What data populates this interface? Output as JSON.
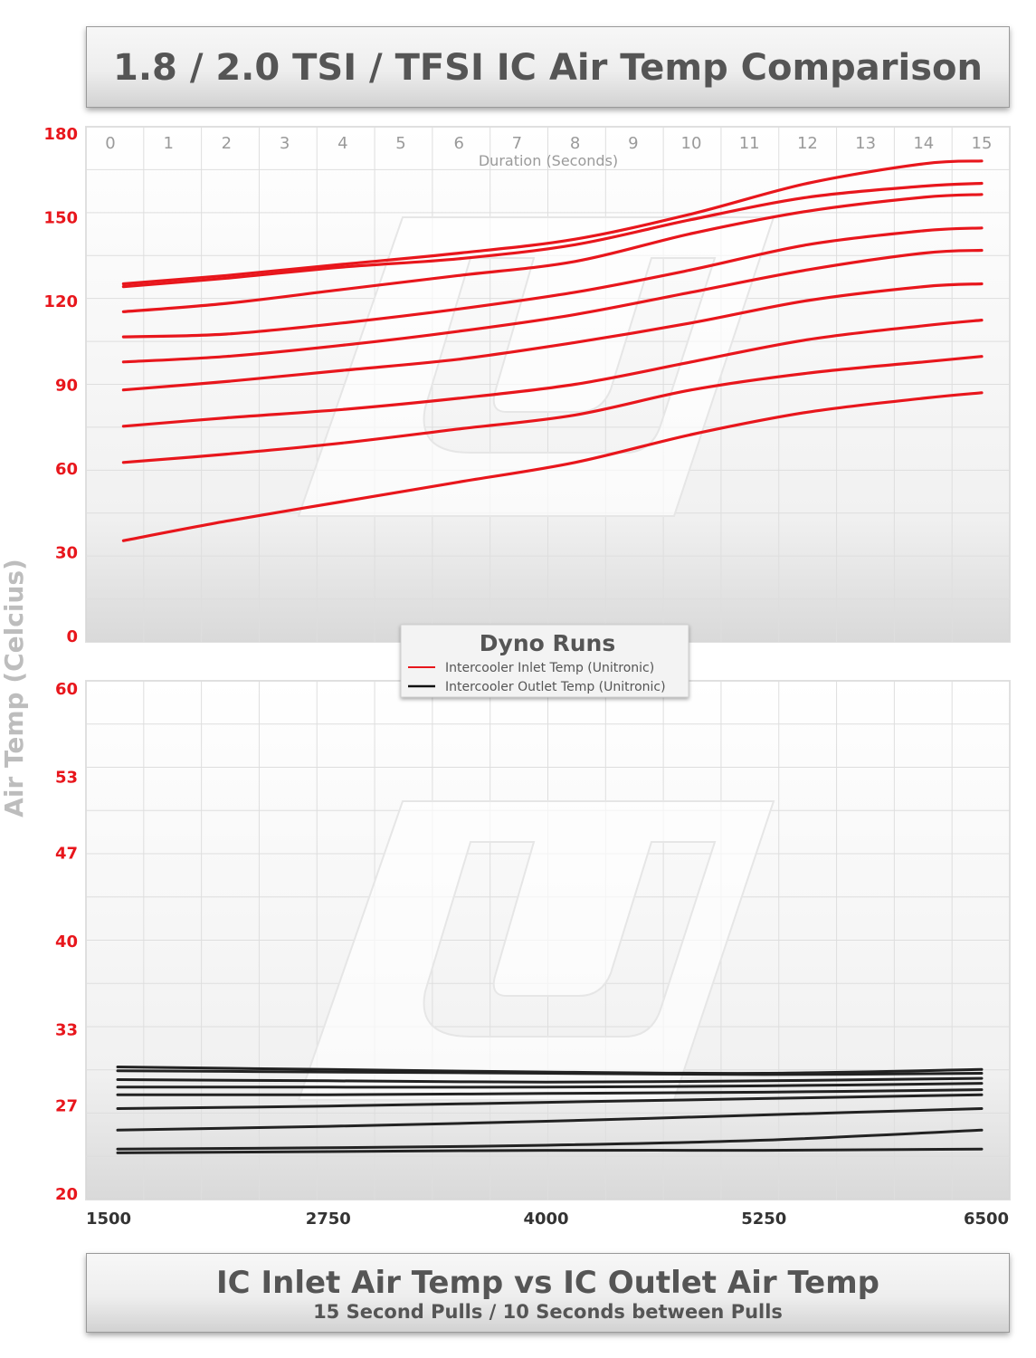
{
  "header": {
    "title": "1.8 / 2.0 TSI / TFSI IC Air Temp Comparison"
  },
  "footer": {
    "title": "IC Inlet Air Temp vs IC Outlet Air Temp",
    "subtitle": "15 Second Pulls / 10 Seconds between Pulls"
  },
  "chart_data": [
    {
      "type": "line",
      "title": "1.8 / 2.0 TSI / TFSI IC Air Temp Comparison",
      "xlabel": "Duration (Seconds)",
      "ylabel": "Air Temp (Celcius)",
      "xlim": [
        0,
        15
      ],
      "ylim": [
        0,
        180
      ],
      "x_ticks": [
        "0",
        "1",
        "2",
        "3",
        "4",
        "5",
        "6",
        "7",
        "8",
        "9",
        "10",
        "11",
        "12",
        "13",
        "14",
        "15"
      ],
      "y_ticks": [
        "0",
        "30",
        "60",
        "90",
        "120",
        "150",
        "180"
      ],
      "grid": true,
      "color": "#e8161c",
      "x": [
        0.1,
        2,
        4,
        6,
        8,
        10,
        12,
        14,
        15
      ],
      "series": [
        {
          "values": [
            126,
            129,
            133,
            137,
            142,
            151,
            162,
            169,
            170
          ]
        },
        {
          "values": [
            125,
            128,
            132,
            135,
            140,
            149,
            157,
            161,
            162
          ]
        },
        {
          "values": [
            116,
            119,
            124,
            129,
            134,
            144,
            152,
            157,
            158
          ]
        },
        {
          "values": [
            107,
            108,
            112,
            117,
            123,
            131,
            140,
            145,
            146
          ]
        },
        {
          "values": [
            98,
            100,
            104,
            109,
            115,
            123,
            131,
            137,
            138
          ]
        },
        {
          "values": [
            88,
            91,
            95,
            99,
            105,
            112,
            120,
            125,
            126
          ]
        },
        {
          "values": [
            75,
            78,
            81,
            85,
            90,
            98,
            106,
            111,
            113
          ]
        },
        {
          "values": [
            62,
            65,
            69,
            74,
            79,
            88,
            94,
            98,
            100
          ]
        },
        {
          "values": [
            34,
            41,
            48,
            55,
            62,
            72,
            80,
            85,
            87
          ]
        }
      ]
    },
    {
      "type": "line",
      "xlim": [
        1500,
        6500
      ],
      "ylim": [
        20,
        60
      ],
      "x_ticks": [
        "1500",
        "2750",
        "4000",
        "5250",
        "6500"
      ],
      "y_ticks": [
        "20",
        "27",
        "33",
        "40",
        "47",
        "53",
        "60"
      ],
      "grid": true,
      "color": "#222222",
      "x": [
        1500,
        2750,
        4000,
        5250,
        6500
      ],
      "series": [
        {
          "values": [
            30.0,
            29.8,
            29.6,
            29.5,
            29.8
          ]
        },
        {
          "values": [
            29.7,
            29.6,
            29.5,
            29.4,
            29.5
          ]
        },
        {
          "values": [
            29.0,
            28.9,
            28.8,
            28.9,
            29.1
          ]
        },
        {
          "values": [
            28.4,
            28.4,
            28.4,
            28.5,
            28.7
          ]
        },
        {
          "values": [
            27.8,
            27.8,
            27.9,
            28.0,
            28.2
          ]
        },
        {
          "values": [
            26.7,
            26.9,
            27.2,
            27.5,
            27.8
          ]
        },
        {
          "values": [
            25.0,
            25.3,
            25.7,
            26.2,
            26.7
          ]
        },
        {
          "values": [
            23.5,
            23.6,
            23.8,
            24.2,
            25.0
          ]
        },
        {
          "values": [
            23.2,
            23.3,
            23.4,
            23.4,
            23.5
          ]
        }
      ]
    }
  ],
  "legend": {
    "title": "Dyno Runs",
    "placement": "center",
    "items": [
      {
        "label": "Intercooler Inlet Temp (Unitronic)",
        "color": "#e8161c"
      },
      {
        "label": "Intercooler Outlet Temp (Unitronic)",
        "color": "#111111"
      }
    ]
  }
}
